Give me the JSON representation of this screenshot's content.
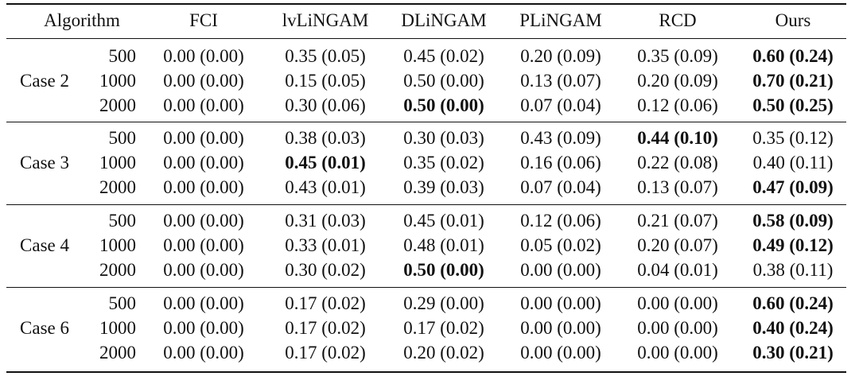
{
  "table": {
    "header": [
      "Algorithm",
      "FCI",
      "lvLiNGAM",
      "DLiNGAM",
      "PLiNGAM",
      "RCD",
      "Ours"
    ],
    "groups": [
      {
        "case": "Case 2",
        "rows": [
          {
            "n": "500",
            "values": [
              "0.00 (0.00)",
              "0.35 (0.05)",
              "0.45 (0.02)",
              "0.20 (0.09)",
              "0.35 (0.09)",
              "0.60 (0.24)"
            ],
            "bold": [
              false,
              false,
              false,
              false,
              false,
              true
            ]
          },
          {
            "n": "1000",
            "values": [
              "0.00 (0.00)",
              "0.15 (0.05)",
              "0.50 (0.00)",
              "0.13 (0.07)",
              "0.20 (0.09)",
              "0.70 (0.21)"
            ],
            "bold": [
              false,
              false,
              false,
              false,
              false,
              true
            ]
          },
          {
            "n": "2000",
            "values": [
              "0.00 (0.00)",
              "0.30 (0.06)",
              "0.50 (0.00)",
              "0.07 (0.04)",
              "0.12 (0.06)",
              "0.50 (0.25)"
            ],
            "bold": [
              false,
              false,
              true,
              false,
              false,
              true
            ]
          }
        ]
      },
      {
        "case": "Case 3",
        "rows": [
          {
            "n": "500",
            "values": [
              "0.00 (0.00)",
              "0.38 (0.03)",
              "0.30 (0.03)",
              "0.43 (0.09)",
              "0.44 (0.10)",
              "0.35 (0.12)"
            ],
            "bold": [
              false,
              false,
              false,
              false,
              true,
              false
            ]
          },
          {
            "n": "1000",
            "values": [
              "0.00 (0.00)",
              "0.45 (0.01)",
              "0.35 (0.02)",
              "0.16 (0.06)",
              "0.22 (0.08)",
              "0.40 (0.11)"
            ],
            "bold": [
              false,
              true,
              false,
              false,
              false,
              false
            ]
          },
          {
            "n": "2000",
            "values": [
              "0.00 (0.00)",
              "0.43 (0.01)",
              "0.39 (0.03)",
              "0.07 (0.04)",
              "0.13 (0.07)",
              "0.47 (0.09)"
            ],
            "bold": [
              false,
              false,
              false,
              false,
              false,
              true
            ]
          }
        ]
      },
      {
        "case": "Case 4",
        "rows": [
          {
            "n": "500",
            "values": [
              "0.00 (0.00)",
              "0.31 (0.03)",
              "0.45 (0.01)",
              "0.12 (0.06)",
              "0.21 (0.07)",
              "0.58 (0.09)"
            ],
            "bold": [
              false,
              false,
              false,
              false,
              false,
              true
            ]
          },
          {
            "n": "1000",
            "values": [
              "0.00 (0.00)",
              "0.33 (0.01)",
              "0.48 (0.01)",
              "0.05 (0.02)",
              "0.20 (0.07)",
              "0.49 (0.12)"
            ],
            "bold": [
              false,
              false,
              false,
              false,
              false,
              true
            ]
          },
          {
            "n": "2000",
            "values": [
              "0.00 (0.00)",
              "0.30 (0.02)",
              "0.50 (0.00)",
              "0.00 (0.00)",
              "0.04 (0.01)",
              "0.38 (0.11)"
            ],
            "bold": [
              false,
              false,
              true,
              false,
              false,
              false
            ]
          }
        ]
      },
      {
        "case": "Case 6",
        "rows": [
          {
            "n": "500",
            "values": [
              "0.00 (0.00)",
              "0.17 (0.02)",
              "0.29 (0.00)",
              "0.00 (0.00)",
              "0.00 (0.00)",
              "0.60 (0.24)"
            ],
            "bold": [
              false,
              false,
              false,
              false,
              false,
              true
            ]
          },
          {
            "n": "1000",
            "values": [
              "0.00 (0.00)",
              "0.17 (0.02)",
              "0.17 (0.02)",
              "0.00 (0.00)",
              "0.00 (0.00)",
              "0.40 (0.24)"
            ],
            "bold": [
              false,
              false,
              false,
              false,
              false,
              true
            ]
          },
          {
            "n": "2000",
            "values": [
              "0.00 (0.00)",
              "0.17 (0.02)",
              "0.20 (0.02)",
              "0.00 (0.00)",
              "0.00 (0.00)",
              "0.30 (0.21)"
            ],
            "bold": [
              false,
              false,
              false,
              false,
              false,
              true
            ]
          }
        ]
      }
    ]
  }
}
